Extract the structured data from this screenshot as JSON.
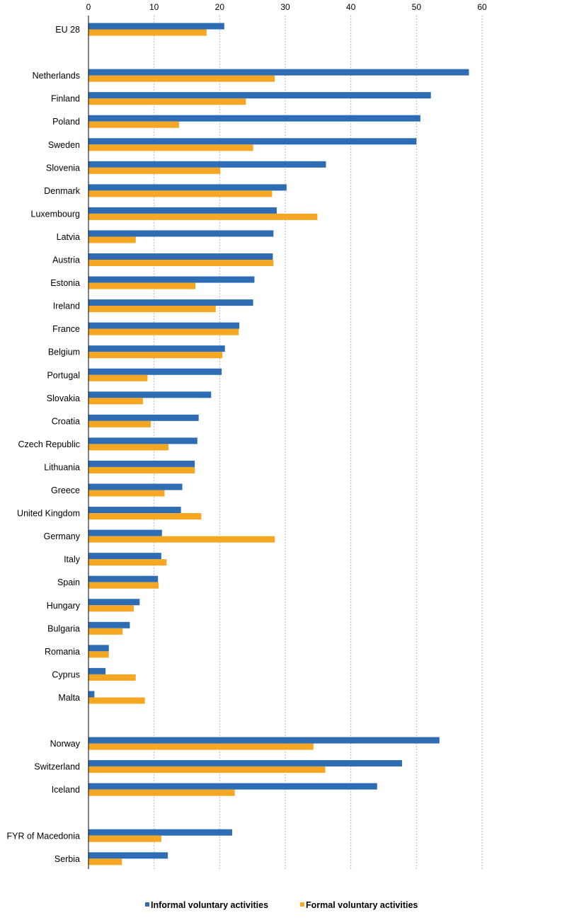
{
  "chart_data": {
    "type": "bar",
    "orientation": "horizontal",
    "title": "",
    "xlabel": "",
    "ylabel": "",
    "xlim": [
      0,
      60
    ],
    "xticks": [
      0,
      10,
      20,
      30,
      40,
      50,
      60
    ],
    "grid": true,
    "legend_position": "bottom",
    "categories": [
      "EU 28",
      "",
      "Netherlands",
      "Finland",
      "Poland",
      "Sweden",
      "Slovenia",
      "Denmark",
      "Luxembourg",
      "Latvia",
      "Austria",
      "Estonia",
      "Ireland",
      "France",
      "Belgium",
      "Portugal",
      "Slovakia",
      "Croatia",
      "Czech Republic",
      "Lithuania",
      "Greece",
      "United Kingdom",
      "Germany",
      "Italy",
      "Spain",
      "Hungary",
      "Bulgaria",
      "Romania",
      "Cyprus",
      "Malta",
      "",
      "Norway",
      "Switzerland",
      "Iceland",
      "",
      "FYR of Macedonia",
      "Serbia"
    ],
    "series": [
      {
        "name": "Informal  voluntary activities",
        "color": "#2e6db4",
        "values": [
          20.7,
          null,
          58.0,
          52.2,
          50.6,
          50.0,
          36.2,
          30.2,
          28.7,
          28.2,
          28.1,
          25.3,
          25.1,
          23.0,
          20.8,
          20.3,
          18.7,
          16.8,
          16.6,
          16.2,
          14.3,
          14.1,
          11.2,
          11.1,
          10.6,
          7.8,
          6.3,
          3.1,
          2.6,
          0.9,
          null,
          53.5,
          47.8,
          44.0,
          null,
          21.9,
          12.1
        ]
      },
      {
        "name": "Formal voluntary activities",
        "color": "#f5a623",
        "values": [
          18.0,
          null,
          28.4,
          24.0,
          13.8,
          25.1,
          20.1,
          28.0,
          34.9,
          7.2,
          28.2,
          16.3,
          19.4,
          22.9,
          20.4,
          9.0,
          8.3,
          9.5,
          12.2,
          16.2,
          11.6,
          17.2,
          28.4,
          11.9,
          10.7,
          6.9,
          5.2,
          3.1,
          7.2,
          8.6,
          null,
          34.3,
          36.1,
          22.3,
          null,
          11.1,
          5.1
        ]
      }
    ]
  }
}
